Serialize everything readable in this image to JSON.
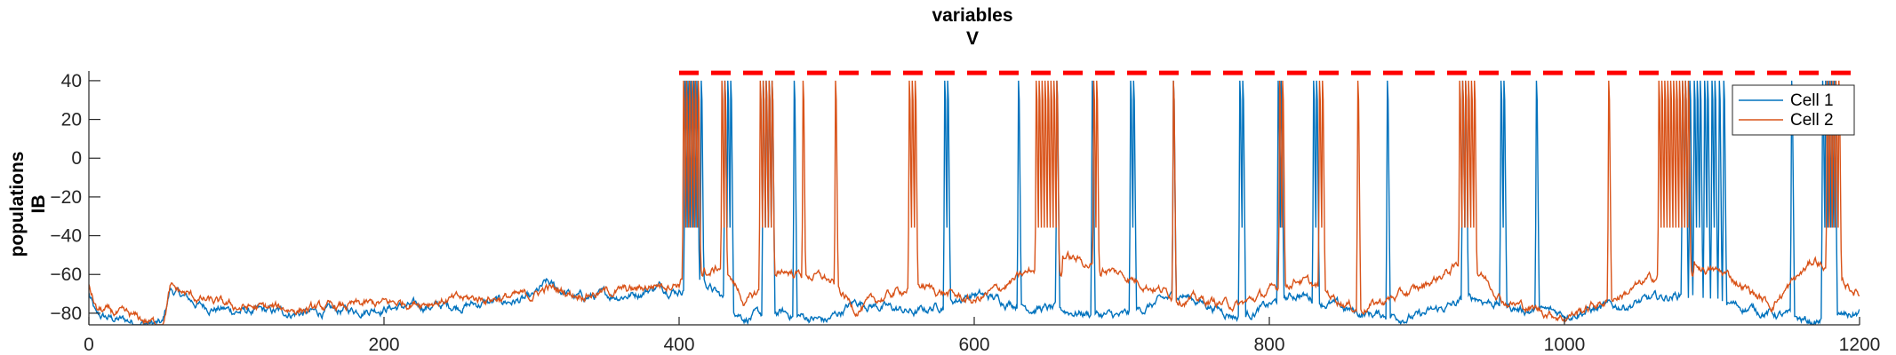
{
  "chart_data": {
    "type": "line",
    "title_lines": [
      "variables",
      "V"
    ],
    "ylabel_lines": [
      "populations",
      "IB"
    ],
    "xlabel": "",
    "xlim": [
      0,
      1200
    ],
    "ylim": [
      -86,
      45
    ],
    "x_ticks": [
      0,
      200,
      400,
      600,
      800,
      1000,
      1200
    ],
    "y_ticks": [
      -80,
      -60,
      -40,
      -20,
      0,
      20,
      40
    ],
    "grid": false,
    "legend_position": "top-right",
    "series": [
      {
        "name": "Cell 1",
        "color": "#0072BD",
        "baseline_points": [
          [
            0,
            -70
          ],
          [
            5,
            -82
          ],
          [
            50,
            -86
          ],
          [
            55,
            -68
          ],
          [
            75,
            -76
          ],
          [
            100,
            -79
          ],
          [
            150,
            -80
          ],
          [
            200,
            -77
          ],
          [
            250,
            -76
          ],
          [
            300,
            -73
          ],
          [
            310,
            -65
          ],
          [
            330,
            -72
          ],
          [
            370,
            -70
          ],
          [
            385,
            -66
          ],
          [
            400,
            -68
          ],
          [
            415,
            -62
          ],
          [
            430,
            -73
          ],
          [
            445,
            -82
          ],
          [
            470,
            -80
          ],
          [
            500,
            -84
          ],
          [
            520,
            -74
          ],
          [
            560,
            -80
          ],
          [
            600,
            -70
          ],
          [
            640,
            -77
          ],
          [
            700,
            -82
          ],
          [
            740,
            -70
          ],
          [
            780,
            -82
          ],
          [
            820,
            -70
          ],
          [
            860,
            -80
          ],
          [
            900,
            -82
          ],
          [
            940,
            -72
          ],
          [
            970,
            -78
          ],
          [
            1000,
            -80
          ],
          [
            1040,
            -76
          ],
          [
            1080,
            -70
          ],
          [
            1110,
            -75
          ],
          [
            1140,
            -80
          ],
          [
            1170,
            -85
          ],
          [
            1200,
            -80
          ]
        ],
        "spike_times": [
          404,
          406,
          408,
          410,
          412,
          415,
          431,
          433,
          435,
          457,
          459,
          461,
          463,
          478,
          580,
          582,
          630,
          656,
          680,
          706,
          708,
          735,
          780,
          782,
          806,
          808,
          830,
          832,
          880,
          931,
          933,
          957,
          959,
          981,
          1080,
          1082,
          1085,
          1088,
          1090,
          1092,
          1095,
          1097,
          1100,
          1102,
          1105,
          1108,
          1154,
          1175,
          1177,
          1179,
          1181,
          1183
        ]
      },
      {
        "name": "Cell 2",
        "color": "#D95319",
        "baseline_points": [
          [
            0,
            -65
          ],
          [
            5,
            -78
          ],
          [
            50,
            -86
          ],
          [
            55,
            -67
          ],
          [
            75,
            -73
          ],
          [
            100,
            -77
          ],
          [
            150,
            -78
          ],
          [
            200,
            -75
          ],
          [
            250,
            -73
          ],
          [
            300,
            -71
          ],
          [
            310,
            -67
          ],
          [
            330,
            -70
          ],
          [
            370,
            -68
          ],
          [
            385,
            -65
          ],
          [
            400,
            -64
          ],
          [
            410,
            -52
          ],
          [
            420,
            -60
          ],
          [
            430,
            -55
          ],
          [
            445,
            -75
          ],
          [
            470,
            -58
          ],
          [
            500,
            -62
          ],
          [
            520,
            -78
          ],
          [
            560,
            -65
          ],
          [
            600,
            -74
          ],
          [
            645,
            -56
          ],
          [
            660,
            -50
          ],
          [
            700,
            -60
          ],
          [
            740,
            -72
          ],
          [
            780,
            -76
          ],
          [
            820,
            -62
          ],
          [
            860,
            -78
          ],
          [
            900,
            -68
          ],
          [
            935,
            -52
          ],
          [
            960,
            -74
          ],
          [
            1000,
            -82
          ],
          [
            1040,
            -70
          ],
          [
            1080,
            -54
          ],
          [
            1110,
            -60
          ],
          [
            1140,
            -76
          ],
          [
            1170,
            -52
          ],
          [
            1190,
            -65
          ],
          [
            1200,
            -70
          ]
        ],
        "spike_times": [
          403,
          405,
          407,
          409,
          411,
          413,
          429,
          431,
          455,
          457,
          459,
          461,
          463,
          484,
          506,
          556,
          558,
          560,
          642,
          644,
          646,
          648,
          650,
          652,
          654,
          656,
          681,
          683,
          735,
          807,
          809,
          834,
          836,
          860,
          929,
          931,
          933,
          935,
          937,
          939,
          1030,
          1064,
          1066,
          1068,
          1070,
          1072,
          1074,
          1076,
          1078,
          1080,
          1082,
          1084,
          1178,
          1180,
          1182,
          1184,
          1186
        ]
      }
    ],
    "threshold_line": {
      "y": 44,
      "color": "#FF0000",
      "style": "dashed",
      "x_start": 400,
      "x_end": 1200
    }
  }
}
